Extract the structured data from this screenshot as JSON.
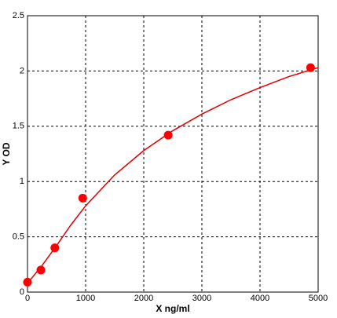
{
  "chart_data": {
    "type": "scatter",
    "xlabel": "X ng/ml",
    "ylabel": "Y OD",
    "points": {
      "color": "#ff0000",
      "x": [
        0,
        230,
        470,
        950,
        2420,
        4870
      ],
      "values": [
        0.09,
        0.2,
        0.4,
        0.85,
        1.42,
        2.03
      ]
    },
    "fit": {
      "color": "#dd0000",
      "x": [
        0,
        250,
        500,
        750,
        1000,
        1500,
        2000,
        2500,
        3000,
        3500,
        4000,
        4500,
        5000
      ],
      "values": [
        0.08,
        0.24,
        0.42,
        0.61,
        0.78,
        1.06,
        1.28,
        1.46,
        1.61,
        1.74,
        1.85,
        1.95,
        2.03
      ]
    },
    "xlim": [
      0,
      5000
    ],
    "xticks": [
      0,
      1000,
      2000,
      3000,
      4000,
      5000
    ],
    "ylim": [
      0,
      2.5
    ],
    "yticks": [
      0,
      0.5,
      1,
      1.5,
      2,
      2.5
    ],
    "grid": true
  }
}
